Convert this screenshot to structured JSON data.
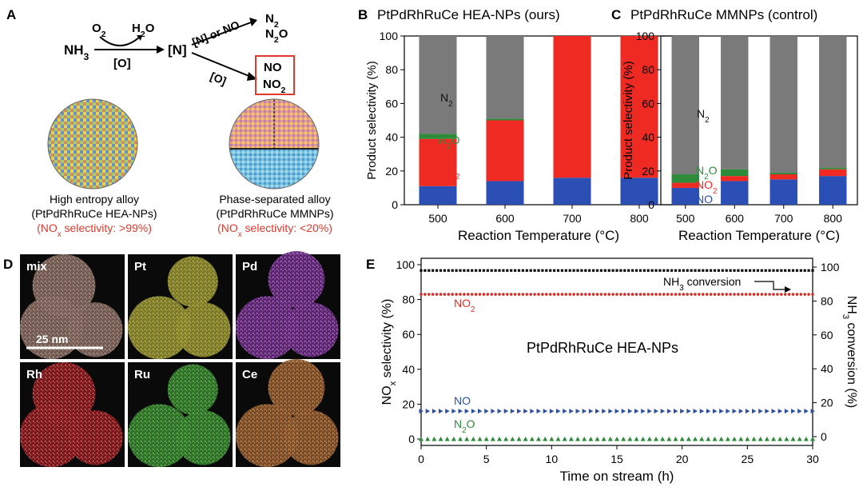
{
  "panel_labels": {
    "a": "A",
    "b": "B",
    "c": "C",
    "d": "D",
    "e": "E"
  },
  "scheme": {
    "nh3": "NH3",
    "o2": "O2",
    "h2o": "H2O",
    "o_bracket": "[O]",
    "n_bracket": "[N]",
    "upper_path_label": "[N] or NO",
    "lower_path_label": "[O]",
    "n2": "N2",
    "n2o": "N2O",
    "no": "NO",
    "no2": "NO2",
    "hea_name": "High entropy alloy",
    "hea_formula": "(PtPdRhRuCe HEA-NPs)",
    "hea_selectivity": "(NOx selectivity: >99%)",
    "mm_name": "Phase-separated alloy",
    "mm_formula": "(PtPdRhRuCe MMNPs)",
    "mm_selectivity": "(NOx selectivity: <20%)"
  },
  "colors": {
    "no": "#2b4fb5",
    "no2": "#ee2a22",
    "n2o": "#2e8b3a",
    "n2": "#7a7a7a",
    "n2_label": "#111111",
    "nh3_line": "#000000",
    "no_marker": "#2d4f9e",
    "no2_marker": "#d62a25",
    "n2o_marker": "#2e8b3a",
    "tile_bg": "#0a0a0a"
  },
  "eds": {
    "tiles": [
      {
        "label": "mix",
        "color": "#c49a8a"
      },
      {
        "label": "Pt",
        "color": "#d8d23a"
      },
      {
        "label": "Pd",
        "color": "#a23fc7"
      },
      {
        "label": "Rh",
        "color": "#d7262b"
      },
      {
        "label": "Ru",
        "color": "#49c23a"
      },
      {
        "label": "Ce",
        "color": "#d9823a"
      }
    ],
    "scale_bar": "25 nm"
  },
  "chart_data": [
    {
      "panel": "B",
      "type": "bar",
      "stacked": true,
      "title": "PtPdRhRuCe HEA-NPs (ours)",
      "xlabel": "Reaction Temperature (°C)",
      "ylabel": "Product selectivity (%)",
      "categories": [
        "500",
        "600",
        "700",
        "800"
      ],
      "ylim": [
        0,
        100
      ],
      "yticks": [
        "0",
        "20",
        "40",
        "60",
        "80",
        "100"
      ],
      "series": [
        {
          "name": "NO",
          "values": [
            11,
            14,
            16,
            16
          ]
        },
        {
          "name": "NO2",
          "values": [
            28,
            36,
            84,
            84
          ]
        },
        {
          "name": "N2O",
          "values": [
            3,
            1,
            0,
            0
          ]
        },
        {
          "name": "N2",
          "values": [
            58,
            49,
            0,
            0
          ]
        }
      ]
    },
    {
      "panel": "C",
      "type": "bar",
      "stacked": true,
      "title": "PtPdRhRuCe MMNPs (control)",
      "xlabel": "Reaction Temperature (°C)",
      "ylabel": "Product selectivity (%)",
      "categories": [
        "500",
        "600",
        "700",
        "800"
      ],
      "ylim": [
        0,
        100
      ],
      "yticks": [
        "0",
        "20",
        "40",
        "60",
        "80",
        "100"
      ],
      "series": [
        {
          "name": "NO",
          "values": [
            10,
            14,
            15,
            17
          ]
        },
        {
          "name": "NO2",
          "values": [
            3,
            3,
            3,
            4
          ]
        },
        {
          "name": "N2O",
          "values": [
            5,
            4,
            1,
            1
          ]
        },
        {
          "name": "N2",
          "values": [
            82,
            79,
            81,
            78
          ]
        }
      ]
    },
    {
      "panel": "E",
      "type": "scatter",
      "title": "PtPdRhRuCe HEA-NPs",
      "xlabel": "Time on stream (h)",
      "ylabel": "NOx selectivity (%)",
      "y2label": "NH3 conversion (%)",
      "xlim": [
        0,
        30
      ],
      "ylim": [
        0,
        100
      ],
      "y2lim": [
        0,
        100
      ],
      "xticks": [
        "0",
        "5",
        "10",
        "15",
        "20",
        "25",
        "30"
      ],
      "yticks": [
        "0",
        "20",
        "40",
        "60",
        "80",
        "100"
      ],
      "y2ticks": [
        "0",
        "20",
        "40",
        "60",
        "80",
        "100"
      ],
      "series": [
        {
          "name": "NH3 conversion",
          "axis": "right",
          "x_start": 0,
          "x_end": 30,
          "value": 98
        },
        {
          "name": "NO2",
          "axis": "left",
          "x_start": 0,
          "x_end": 30,
          "value": 83
        },
        {
          "name": "NO",
          "axis": "left",
          "x_start": 0,
          "x_end": 30,
          "value": 16
        },
        {
          "name": "N2O",
          "axis": "left",
          "x_start": 0,
          "x_end": 30,
          "value": 0
        }
      ],
      "annotations": {
        "nh3": "NH3 conversion",
        "no2": "NO2",
        "no": "NO",
        "n2o": "N2O"
      }
    }
  ]
}
